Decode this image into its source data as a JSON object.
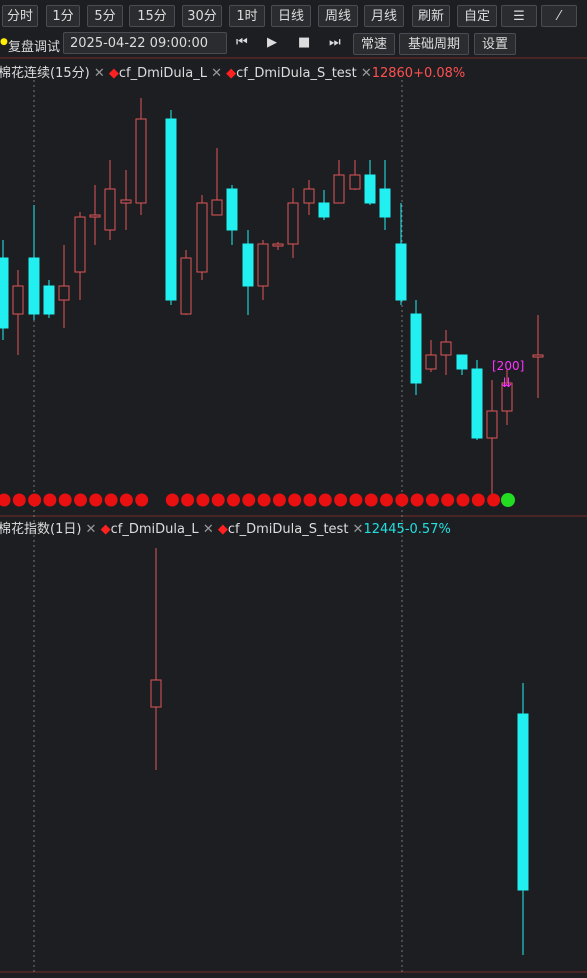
{
  "toolbar": {
    "buttons": [
      "分时",
      "1分",
      "5分",
      "15分",
      "30分",
      "1时",
      "日线",
      "周线",
      "月线",
      "刷新",
      "自定"
    ]
  },
  "replay": {
    "label": "复盘调试",
    "datetime": "2025-04-22 09:00:00",
    "buttons": [
      "常速",
      "基础周期",
      "设置"
    ]
  },
  "panels": [
    {
      "title": "棉花连续(15分)",
      "indicators": [
        "cf_DmiDula_L",
        "cf_DmiDula_S_test"
      ],
      "price": "12860",
      "change": "+0.08%",
      "annotation": "[200]"
    },
    {
      "title": "棉花指数(1日)",
      "indicators": [
        "cf_DmiDula_L",
        "cf_DmiDula_S_test"
      ],
      "price": "12445",
      "change": "-0.57%"
    }
  ]
}
